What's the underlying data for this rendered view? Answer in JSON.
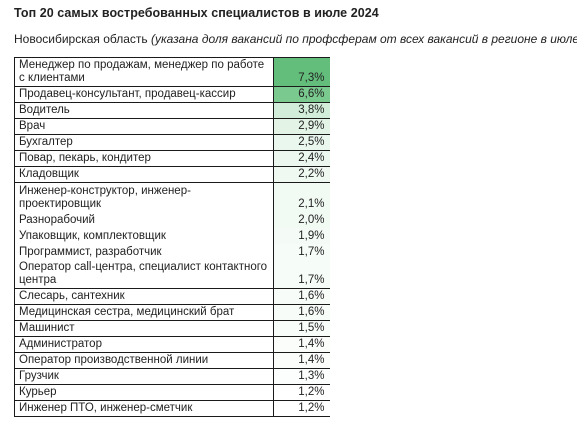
{
  "header": {
    "title": "Топ 20 самых востребованных специалистов в июле 2024",
    "region": "Новосибирская область",
    "note": "(указана доля вакансий по профсферам от всех вакансий в регионе в июле)"
  },
  "rows": [
    {
      "name": "Менеджер по продажам, менеджер по работе с клиентами",
      "value": "7,3%",
      "color": "#63be7b"
    },
    {
      "name": "Продавец-консультант, продавец-кассир",
      "value": "6,6%",
      "color": "#7ac98f"
    },
    {
      "name": "Водитель",
      "value": "3,8%",
      "color": "#d2edd9"
    },
    {
      "name": "Врач",
      "value": "2,9%",
      "color": "#e3f4e7"
    },
    {
      "name": "Бухгалтер",
      "value": "2,5%",
      "color": "#eaf7ee"
    },
    {
      "name": "Повар, пекарь, кондитер",
      "value": "2,4%",
      "color": "#ecf8ef"
    },
    {
      "name": "Кладовщик",
      "value": "2,2%",
      "color": "#eff9f2"
    },
    {
      "name": "Инженер-конструктор, инженер-проектировщик",
      "value": "2,1%",
      "color": "#f1faf3"
    },
    {
      "name": "Разнорабочий",
      "value": "2,0%",
      "color": "#f2faf4"
    },
    {
      "name": "Упаковщик, комплектовщик",
      "value": "1,9%",
      "color": "#f4fbf6"
    },
    {
      "name": "Программист, разработчик",
      "value": "1,7%",
      "color": "#f6fcf8"
    },
    {
      "name": "Оператор call-центра, специалист контактного центра",
      "value": "1,7%",
      "color": "#f6fcf8"
    },
    {
      "name": "Слесарь, сантехник",
      "value": "1,6%",
      "color": "#f8fcf9"
    },
    {
      "name": "Медицинская сестра, медицинский брат",
      "value": "1,6%",
      "color": "#f8fcf9"
    },
    {
      "name": "Машинист",
      "value": "1,5%",
      "color": "#f9fdfa"
    },
    {
      "name": "Администратор",
      "value": "1,4%",
      "color": "#fbfdfb"
    },
    {
      "name": "Оператор производственной линии",
      "value": "1,4%",
      "color": "#fbfdfb"
    },
    {
      "name": "Грузчик",
      "value": "1,3%",
      "color": "#fcfefd"
    },
    {
      "name": "Курьер",
      "value": "1,2%",
      "color": "#fefffe"
    },
    {
      "name": "Инженер ПТО, инженер-сметчик",
      "value": "1,2%",
      "color": "#ffffff"
    }
  ]
}
